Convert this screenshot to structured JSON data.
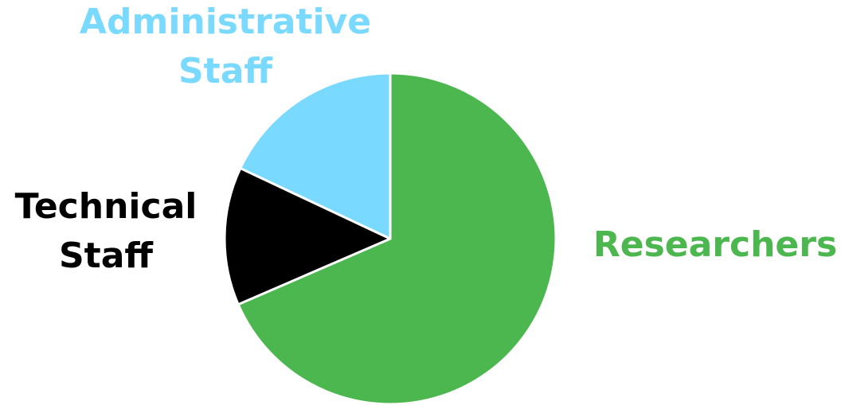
{
  "chart_data": {
    "type": "pie",
    "title": "",
    "slices": [
      {
        "label_lines": [
          "Researchers"
        ],
        "value": 68.5,
        "color": "#4CB64F"
      },
      {
        "label_lines": [
          "Technical",
          "Staff"
        ],
        "value": 13.5,
        "color": "#000000"
      },
      {
        "label_lines": [
          "Administrative",
          "Staff"
        ],
        "value": 18.0,
        "color": "#7AD9FF"
      }
    ],
    "start": "12 o'clock",
    "direction": "clockwise",
    "slice_border_color": "#ffffff",
    "legend": "none (labels placed beside slices)"
  }
}
